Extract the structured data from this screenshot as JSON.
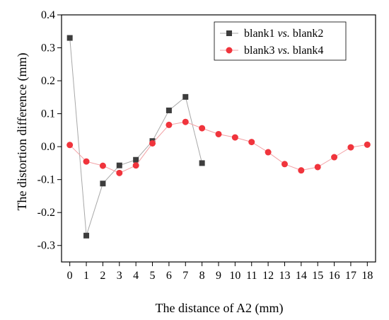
{
  "chart_data": {
    "type": "line",
    "xlabel": "The distance of A2 (mm)",
    "ylabel": "The distortion difference (mm)",
    "xlim": [
      -0.5,
      18.5
    ],
    "ylim": [
      -0.35,
      0.4
    ],
    "xticks": [
      0,
      1,
      2,
      3,
      4,
      5,
      6,
      7,
      8,
      9,
      10,
      11,
      12,
      13,
      14,
      15,
      16,
      17,
      18
    ],
    "yticks": [
      -0.3,
      -0.2,
      -0.1,
      0.0,
      0.1,
      0.2,
      0.3,
      0.4
    ],
    "ytick_labels": [
      "-0.3",
      "-0.2",
      "-0.1",
      "0.0",
      "0.1",
      "0.2",
      "0.3",
      "0.4"
    ],
    "grid": false,
    "legend_position": "top-right",
    "series": [
      {
        "name_parts": [
          "blank1 ",
          "vs.",
          " blank2"
        ],
        "marker": "square",
        "color": "#3d3d3d",
        "line_color": "#a8a8a8",
        "x": [
          0,
          1,
          2,
          3,
          4,
          5,
          6,
          7,
          8
        ],
        "y": [
          0.33,
          -0.27,
          -0.112,
          -0.057,
          -0.04,
          0.017,
          0.11,
          0.151,
          -0.05
        ]
      },
      {
        "name_parts": [
          "blank3 ",
          "vs.",
          " blank4"
        ],
        "marker": "circle",
        "color": "#f0343c",
        "line_color": "#f2a0a4",
        "x": [
          0,
          1,
          2,
          3,
          4,
          5,
          6,
          7,
          8,
          9,
          10,
          11,
          12,
          13,
          14,
          15,
          16,
          17,
          18
        ],
        "y": [
          0.005,
          -0.045,
          -0.058,
          -0.08,
          -0.057,
          0.01,
          0.066,
          0.075,
          0.056,
          0.038,
          0.028,
          0.014,
          -0.017,
          -0.053,
          -0.072,
          -0.062,
          -0.032,
          -0.002,
          0.006
        ]
      }
    ]
  }
}
